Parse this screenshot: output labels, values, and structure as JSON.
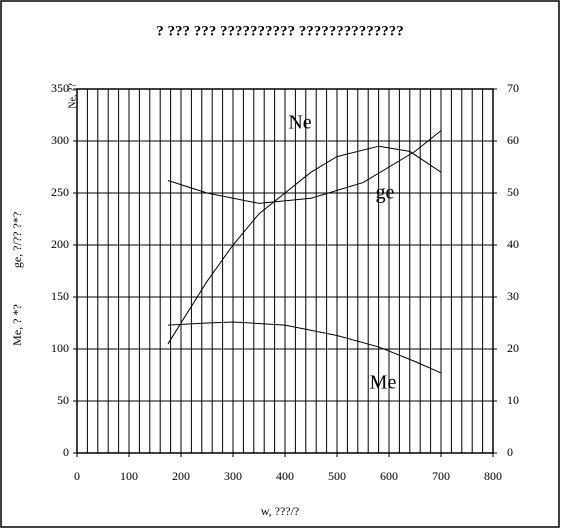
{
  "chart_data": {
    "type": "line",
    "title": "? ??? ??? ?????????? ??????????????",
    "x_label": "w, ???/?",
    "y_labels": [
      "Me, ? *?",
      "ge, ?/?? ?*?"
    ],
    "y2_label": "Ne, ??",
    "xlim": [
      0,
      800
    ],
    "xticks": [
      0,
      100,
      200,
      300,
      400,
      500,
      600,
      700,
      800
    ],
    "xgrid": [
      0,
      20,
      40,
      60,
      80,
      100,
      120,
      140,
      160,
      180,
      200,
      220,
      240,
      260,
      280,
      300,
      320,
      340,
      360,
      380,
      400,
      420,
      440,
      460,
      480,
      500,
      520,
      540,
      560,
      580,
      600,
      620,
      640,
      660,
      680,
      700,
      720,
      740,
      760,
      780,
      800
    ],
    "ylim": [
      0,
      350
    ],
    "yticks": [
      0,
      50,
      100,
      150,
      200,
      250,
      300,
      350
    ],
    "y2lim": [
      0,
      70
    ],
    "y2ticks": [
      0,
      10,
      20,
      30,
      40,
      50,
      60,
      70
    ],
    "grid": true,
    "series": [
      {
        "name": "Ne",
        "color": "#000000",
        "axis": "y2",
        "x": [
          175,
          250,
          300,
          350,
          400,
          450,
          500,
          580,
          640,
          700
        ],
        "values": [
          21,
          33,
          40,
          46,
          50,
          54,
          57,
          59,
          58,
          54
        ]
      },
      {
        "name": "ge",
        "color": "#000000",
        "x": [
          175,
          250,
          350,
          450,
          550,
          650,
          700
        ],
        "values": [
          262,
          250,
          240,
          245,
          260,
          290,
          310
        ]
      },
      {
        "name": "Me",
        "color": "#000000",
        "x": [
          175,
          250,
          300,
          400,
          500,
          580,
          650,
          700
        ],
        "values": [
          123,
          125,
          126,
          123,
          113,
          102,
          88,
          77
        ]
      }
    ]
  }
}
